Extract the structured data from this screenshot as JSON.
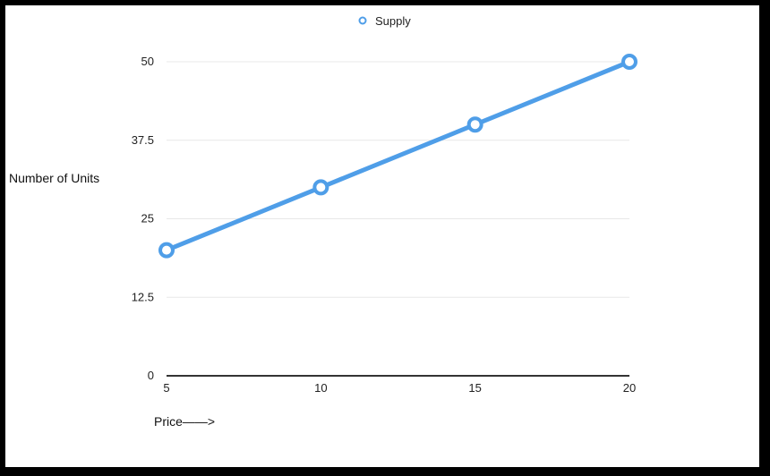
{
  "chart_data": {
    "type": "line",
    "x": [
      5,
      10,
      15,
      20
    ],
    "series": [
      {
        "name": "Supply",
        "values": [
          20,
          30,
          40,
          50
        ],
        "color": "#4f9ee8"
      }
    ],
    "xlabel": "Price——>",
    "ylabel": "Number of Units",
    "xticks": [
      "5",
      "10",
      "15",
      "20"
    ],
    "yticks": [
      "0",
      "12.5",
      "25",
      "37.5",
      "50"
    ],
    "ylim": [
      0,
      50
    ],
    "grid": true,
    "legend_position": "top-center",
    "colors": {
      "grid": "#e8e8e8",
      "axis": "#333333",
      "line": "#4f9ee8"
    }
  }
}
